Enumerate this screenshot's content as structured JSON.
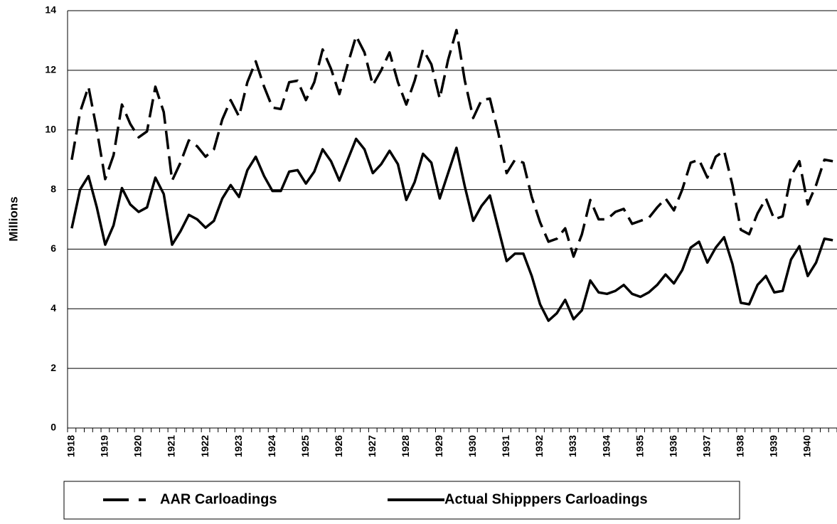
{
  "chart_data": {
    "type": "line",
    "y_label": "Millions",
    "categories": [
      "1918",
      null,
      null,
      null,
      "1919",
      null,
      null,
      null,
      "1920",
      null,
      null,
      null,
      "1921",
      null,
      null,
      null,
      "1922",
      null,
      null,
      null,
      "1923",
      null,
      null,
      null,
      "1924",
      null,
      null,
      null,
      "1925",
      null,
      null,
      null,
      "1926",
      null,
      null,
      null,
      "1927",
      null,
      null,
      null,
      "1928",
      null,
      null,
      null,
      "1929",
      null,
      null,
      null,
      "1930",
      null,
      null,
      null,
      "1931",
      null,
      null,
      null,
      "1932",
      null,
      null,
      null,
      "1933",
      null,
      null,
      null,
      "1934",
      null,
      null,
      null,
      "1935",
      null,
      null,
      null,
      "1936",
      null,
      null,
      null,
      "1937",
      null,
      null,
      null,
      "1938",
      null,
      null,
      null,
      "1939",
      null,
      null,
      null,
      "1940",
      null,
      null,
      null
    ],
    "series": [
      {
        "name": "AAR Carloadings",
        "color": "#000000",
        "dashed": true,
        "values": [
          9.0,
          10.6,
          11.45,
          10.0,
          8.35,
          9.15,
          10.85,
          10.2,
          9.75,
          9.95,
          11.45,
          10.6,
          8.3,
          8.9,
          9.65,
          9.45,
          9.1,
          9.35,
          10.35,
          11.0,
          10.45,
          11.6,
          12.3,
          11.45,
          10.75,
          10.7,
          11.6,
          11.65,
          11.0,
          11.6,
          12.7,
          12.05,
          11.2,
          12.2,
          13.15,
          12.6,
          11.5,
          12.0,
          12.6,
          11.6,
          10.85,
          11.65,
          12.7,
          12.2,
          11.05,
          12.35,
          13.35,
          11.65,
          10.4,
          11.0,
          11.05,
          9.9,
          8.55,
          9.0,
          8.9,
          7.75,
          6.9,
          6.25,
          6.35,
          6.7,
          5.75,
          6.5,
          7.65,
          7.0,
          7.0,
          7.25,
          7.35,
          6.85,
          6.95,
          7.05,
          7.4,
          7.7,
          7.3,
          8.0,
          8.9,
          9.0,
          8.4,
          9.1,
          9.3,
          8.15,
          6.65,
          6.5,
          7.2,
          7.7,
          7.0,
          7.1,
          8.45,
          8.95,
          7.5,
          8.15,
          9.0,
          8.95
        ]
      },
      {
        "name": "Actual Shipppers Carloadings",
        "color": "#000000",
        "dashed": false,
        "values": [
          6.7,
          8.0,
          8.45,
          7.4,
          6.15,
          6.8,
          8.05,
          7.5,
          7.25,
          7.4,
          8.4,
          7.85,
          6.15,
          6.6,
          7.15,
          7.0,
          6.72,
          6.95,
          7.7,
          8.15,
          7.75,
          8.65,
          9.1,
          8.45,
          7.95,
          7.95,
          8.6,
          8.65,
          8.2,
          8.6,
          9.35,
          8.95,
          8.3,
          9.0,
          9.7,
          9.35,
          8.55,
          8.85,
          9.3,
          8.85,
          7.65,
          8.25,
          9.2,
          8.9,
          7.7,
          8.55,
          9.4,
          8.1,
          6.95,
          7.45,
          7.8,
          6.7,
          5.6,
          5.85,
          5.85,
          5.1,
          4.15,
          3.6,
          3.85,
          4.3,
          3.65,
          3.95,
          4.95,
          4.55,
          4.5,
          4.6,
          4.8,
          4.5,
          4.4,
          4.55,
          4.8,
          5.15,
          4.85,
          5.3,
          6.05,
          6.25,
          5.55,
          6.05,
          6.4,
          5.5,
          4.2,
          4.15,
          4.8,
          5.1,
          4.55,
          4.6,
          5.65,
          6.1,
          5.1,
          5.55,
          6.35,
          6.3
        ]
      }
    ],
    "ylim": [
      0,
      14
    ],
    "yticks": [
      0,
      2,
      4,
      6,
      8,
      10,
      12,
      14
    ],
    "grid": true,
    "legend": "bottom"
  }
}
